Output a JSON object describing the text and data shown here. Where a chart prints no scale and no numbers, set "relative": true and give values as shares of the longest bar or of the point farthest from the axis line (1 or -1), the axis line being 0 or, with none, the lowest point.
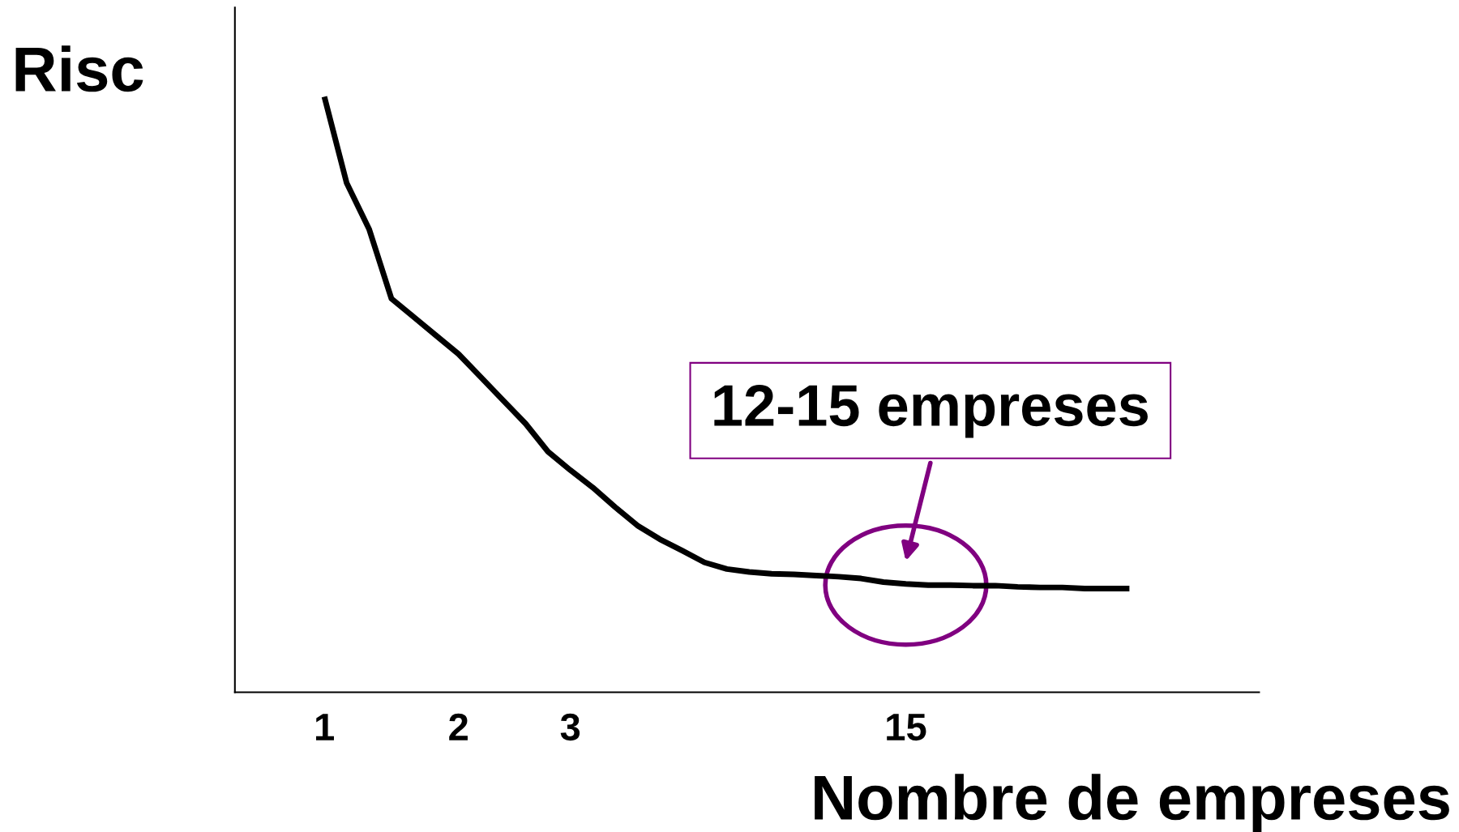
{
  "chart_data": {
    "type": "line",
    "relative": true,
    "ylabel": "Risc",
    "xlabel": "Nombre de empreses",
    "categories": [
      null,
      null,
      null,
      null,
      "1",
      null,
      null,
      null,
      null,
      null,
      "2",
      null,
      null,
      null,
      null,
      "3",
      null,
      null,
      null,
      null,
      null,
      null,
      null,
      null,
      null,
      null,
      null,
      null,
      null,
      null,
      "15",
      null,
      null,
      null,
      null,
      null,
      null,
      null,
      null,
      null,
      null,
      null,
      null,
      null,
      null,
      null
    ],
    "series": [
      {
        "color": "#000000",
        "values": [
          null,
          null,
          null,
          null,
          1.0,
          0.855,
          0.778,
          0.661,
          0.63,
          0.599,
          0.568,
          0.529,
          0.49,
          0.451,
          0.404,
          0.373,
          0.344,
          0.311,
          0.28,
          0.257,
          0.238,
          0.218,
          0.207,
          0.202,
          0.199,
          0.198,
          0.196,
          0.194,
          0.191,
          0.185,
          0.182,
          0.18,
          0.18,
          0.179,
          0.179,
          0.177,
          0.176,
          0.176,
          0.174,
          0.174,
          0.174,
          null,
          null,
          null,
          null,
          null
        ]
      }
    ],
    "annotations": [
      {
        "text": "12-15 empreses",
        "x": "15",
        "y": 0.18
      }
    ],
    "grid": false,
    "legend": false,
    "marker": "none",
    "line_style": "solid"
  }
}
